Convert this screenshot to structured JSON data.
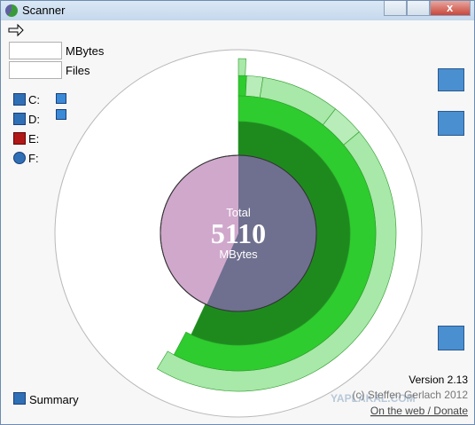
{
  "window": {
    "title": "Scanner"
  },
  "stats": {
    "mbytes_label": "MBytes",
    "files_label": "Files"
  },
  "drives": [
    "C:",
    "D:",
    "E:",
    "F:"
  ],
  "total": {
    "label": "Total",
    "value": 5110,
    "unit": "MBytes"
  },
  "summary": "Summary",
  "version": "Version 2.13",
  "copyright": "(c) Steffen Gerlach 2012",
  "link": "On the web / Donate",
  "watermark": "YAPLAKAL.COM"
}
